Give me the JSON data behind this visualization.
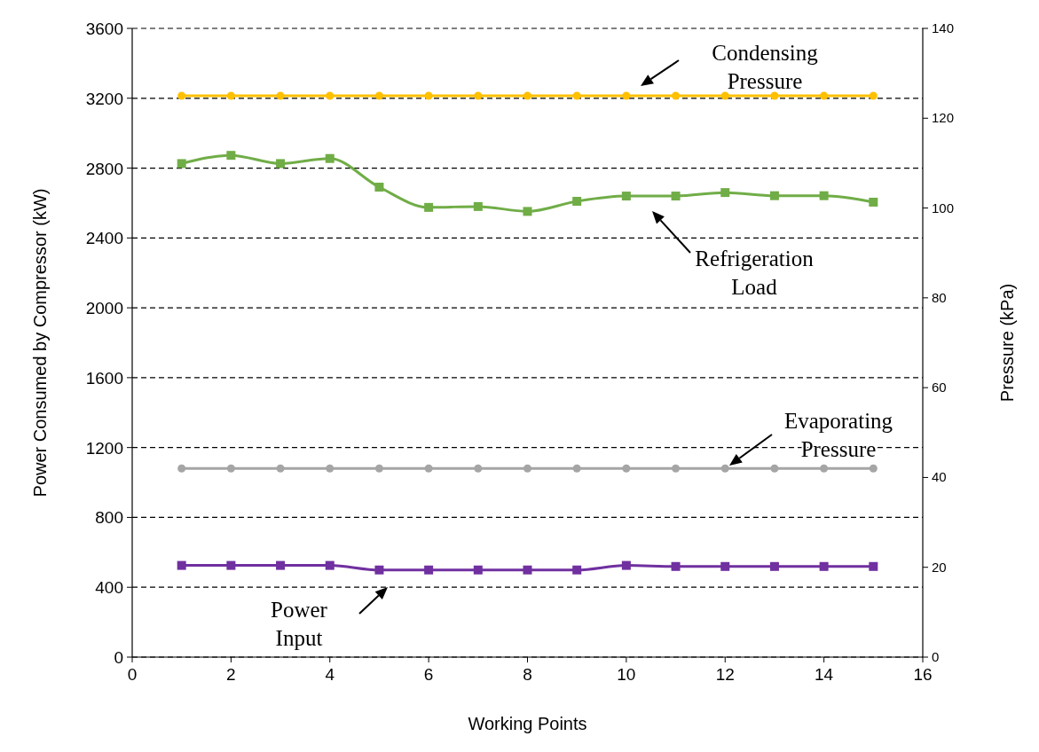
{
  "chart_data": {
    "type": "line",
    "xlabel": "Working Points",
    "ylabel": "Power Consumed by Compressor (kW)",
    "y2label": "Pressure (kPa)",
    "x": [
      1,
      2,
      3,
      4,
      5,
      6,
      7,
      8,
      9,
      10,
      11,
      12,
      13,
      14,
      15
    ],
    "xlim": [
      0,
      16
    ],
    "xticks": [
      0,
      2,
      4,
      6,
      8,
      10,
      12,
      14,
      16
    ],
    "ylim": [
      0,
      3600
    ],
    "yticks": [
      0,
      400,
      800,
      1200,
      1600,
      2000,
      2400,
      2800,
      3200,
      3600
    ],
    "y2lim": [
      0,
      140
    ],
    "y2ticks": [
      0,
      20,
      40,
      60,
      80,
      100,
      120,
      140
    ],
    "grid": "y",
    "series": [
      {
        "color": "#ffc000",
        "marker": "circle",
        "axis": "y2",
        "values": [
          125,
          125,
          125,
          125,
          125,
          125,
          125,
          125,
          125,
          125,
          125,
          125,
          125,
          125,
          125
        ]
      },
      {
        "color": "#70ad47",
        "marker": "square",
        "values": [
          2826,
          2873,
          2826,
          2855,
          2691,
          2575,
          2580,
          2552,
          2610,
          2640,
          2640,
          2660,
          2642,
          2642,
          2605
        ]
      },
      {
        "color": "#a5a5a5",
        "marker": "circle",
        "axis": "y2",
        "values": [
          42,
          42,
          42,
          42,
          42,
          42,
          42,
          42,
          42,
          42,
          42,
          42,
          42,
          42,
          42
        ]
      },
      {
        "color": "#7030a0",
        "marker": "square",
        "values": [
          525,
          525,
          525,
          525,
          499,
          499,
          499,
          499,
          499,
          525,
          519,
          519,
          519,
          519,
          519
        ]
      }
    ],
    "annotations": [
      "Condensing Pressure",
      "Refrigeration Load",
      "Evaporating Pressure",
      "Power Input"
    ]
  }
}
